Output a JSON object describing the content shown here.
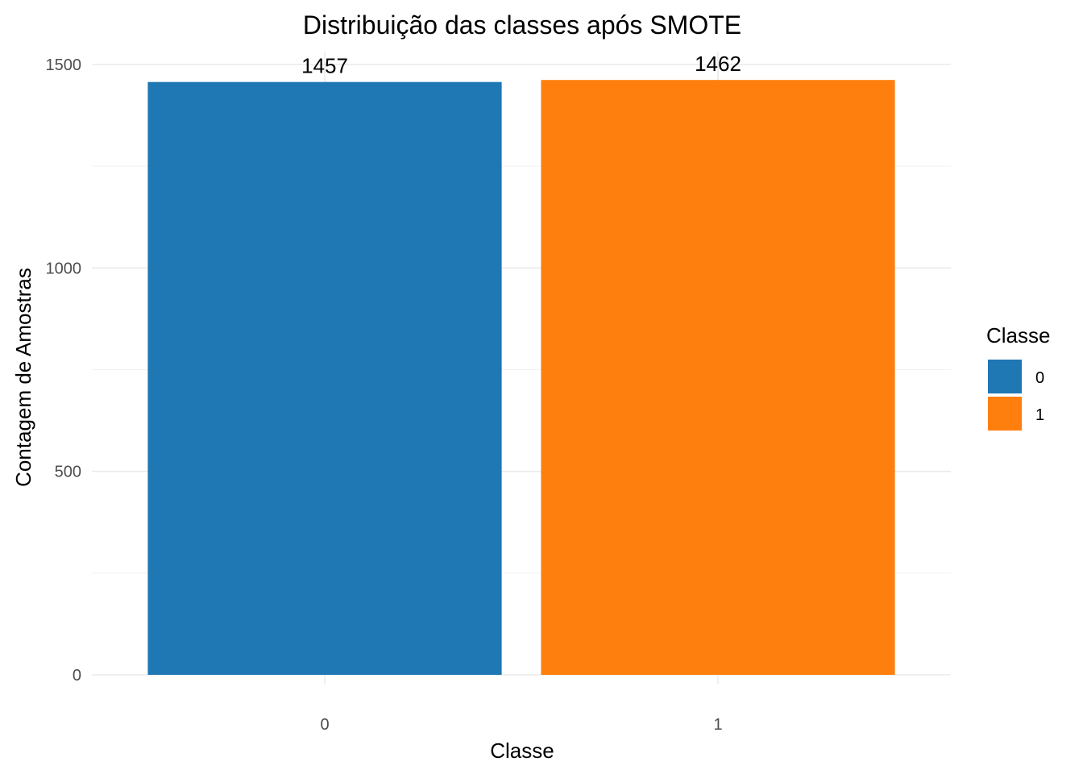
{
  "chart_data": {
    "type": "bar",
    "title": "Distribuição das classes após SMOTE",
    "xlabel": "Classe",
    "ylabel": "Contagem de Amostras",
    "categories": [
      "0",
      "1"
    ],
    "values": [
      1457,
      1462
    ],
    "data_labels": [
      "1457",
      "1462"
    ],
    "colors": [
      "#1f77b4",
      "#ff7f0e"
    ],
    "ylim": [
      0,
      1500
    ],
    "yticks": [
      0,
      500,
      1000,
      1500
    ],
    "ytick_labels": [
      "0",
      "500",
      "1000",
      "1500"
    ],
    "grid": true,
    "legend": {
      "title": "Classe",
      "placement": "right",
      "entries": [
        {
          "label": "0",
          "color": "#1f77b4"
        },
        {
          "label": "1",
          "color": "#ff7f0e"
        }
      ]
    }
  }
}
